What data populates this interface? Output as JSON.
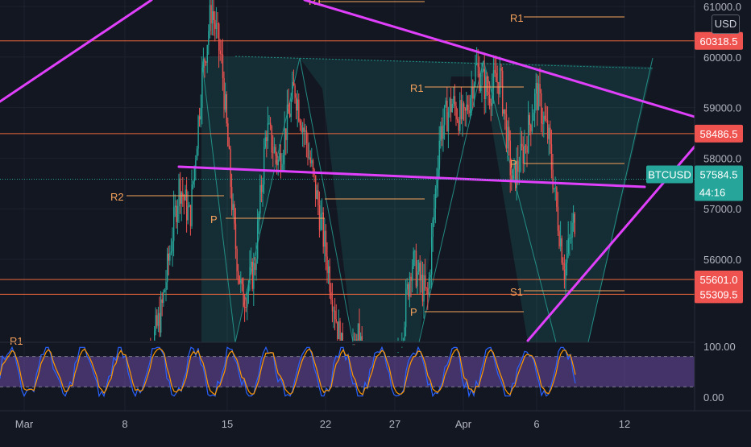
{
  "chart_data": {
    "type": "candlestick",
    "price_axis": {
      "ticks": [
        "61000.0",
        "60000.0",
        "59000.0",
        "58000.0",
        "57000.0",
        "56000.0"
      ],
      "tick_values": [
        61000,
        60000,
        59000,
        58000,
        57000,
        56000
      ],
      "currency": "USD"
    },
    "time_axis": {
      "ticks": [
        "Mar",
        "8",
        "15",
        "22",
        "27",
        "Apr",
        "6",
        "12"
      ]
    },
    "price_levels": [
      {
        "value": 60318.5,
        "label": "60318.5"
      },
      {
        "value": 58486.5,
        "label": "58486.5"
      },
      {
        "value": 55601.0,
        "label": "55601.0"
      },
      {
        "value": 55309.5,
        "label": "55309.5"
      }
    ],
    "current_price": {
      "symbol": "BTCUSD",
      "value": 57584.5,
      "label": "57584.5",
      "countdown": "44:16"
    },
    "pivot_labels": [
      "R1",
      "R1",
      "R2",
      "P",
      "R1",
      "P",
      "P",
      "S1",
      "R1"
    ],
    "oscillator": {
      "ticks": [
        "100.00",
        "0.00"
      ],
      "upper_band": 80,
      "lower_band": 20
    },
    "colors": {
      "background": "#131722",
      "up": "#26a69a",
      "down": "#ef5350",
      "trendline": "#e040fb",
      "level": "#f0683c",
      "pivot": "#f7a35c",
      "current": "#26a69a"
    }
  }
}
